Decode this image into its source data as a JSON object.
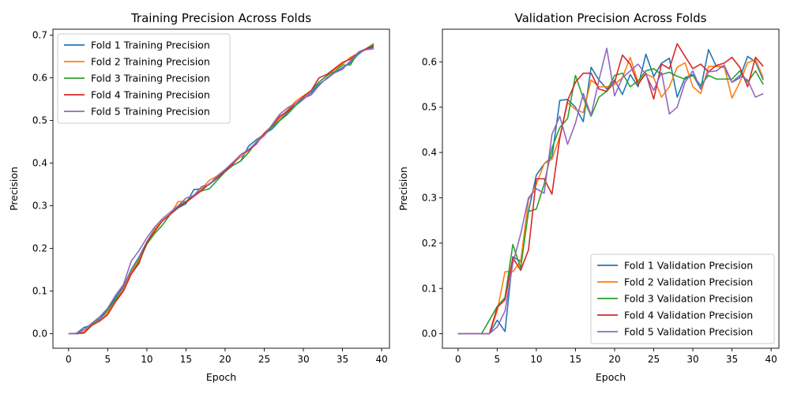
{
  "colors": {
    "series": [
      "#1f77b4",
      "#ff7f0e",
      "#2ca02c",
      "#d62728",
      "#9467bd"
    ],
    "axis": "#000000",
    "legend_border": "#cccccc"
  },
  "chart_data": [
    {
      "type": "line",
      "title": "Training Precision Across Folds",
      "xlabel": "Epoch",
      "ylabel": "Precision",
      "xlim": [
        -2,
        41
      ],
      "ylim": [
        -0.034,
        0.714
      ],
      "xticks": [
        0,
        5,
        10,
        15,
        20,
        25,
        30,
        35,
        40
      ],
      "yticks": [
        0.0,
        0.1,
        0.2,
        0.3,
        0.4,
        0.5,
        0.6,
        0.7
      ],
      "ytick_labels": [
        "0.0",
        "0.1",
        "0.2",
        "0.3",
        "0.4",
        "0.5",
        "0.6",
        "0.7"
      ],
      "grid": false,
      "legend": "upper left",
      "x": [
        0,
        1,
        2,
        3,
        4,
        5,
        6,
        7,
        8,
        9,
        10,
        11,
        12,
        13,
        14,
        15,
        16,
        17,
        18,
        19,
        20,
        21,
        22,
        23,
        24,
        25,
        26,
        27,
        28,
        29,
        30,
        31,
        32,
        33,
        34,
        35,
        36,
        37,
        38,
        39
      ],
      "series": [
        {
          "name": "Fold 1 Training Precision",
          "values": [
            0.0,
            0.001,
            0.015,
            0.02,
            0.035,
            0.055,
            0.085,
            0.11,
            0.15,
            0.18,
            0.215,
            0.245,
            0.265,
            0.28,
            0.295,
            0.305,
            0.338,
            0.34,
            0.35,
            0.365,
            0.38,
            0.395,
            0.405,
            0.44,
            0.455,
            0.468,
            0.48,
            0.5,
            0.52,
            0.535,
            0.55,
            0.565,
            0.585,
            0.598,
            0.612,
            0.624,
            0.635,
            0.655,
            0.668,
            0.672
          ]
        },
        {
          "name": "Fold 2 Training Precision",
          "values": [
            0.0,
            0.0,
            0.005,
            0.025,
            0.03,
            0.05,
            0.08,
            0.105,
            0.145,
            0.175,
            0.21,
            0.245,
            0.265,
            0.28,
            0.31,
            0.31,
            0.325,
            0.34,
            0.36,
            0.37,
            0.385,
            0.4,
            0.415,
            0.43,
            0.45,
            0.47,
            0.485,
            0.505,
            0.525,
            0.545,
            0.558,
            0.57,
            0.59,
            0.605,
            0.62,
            0.632,
            0.648,
            0.658,
            0.668,
            0.678
          ]
        },
        {
          "name": "Fold 3 Training Precision",
          "values": [
            0.0,
            0.0,
            0.002,
            0.022,
            0.04,
            0.055,
            0.08,
            0.1,
            0.14,
            0.17,
            0.21,
            0.235,
            0.255,
            0.28,
            0.3,
            0.31,
            0.325,
            0.335,
            0.34,
            0.36,
            0.38,
            0.395,
            0.405,
            0.425,
            0.45,
            0.465,
            0.485,
            0.5,
            0.515,
            0.535,
            0.555,
            0.57,
            0.59,
            0.605,
            0.615,
            0.63,
            0.63,
            0.66,
            0.668,
            0.68
          ]
        },
        {
          "name": "Fold 4 Training Precision",
          "values": [
            0.0,
            0.0,
            0.002,
            0.02,
            0.03,
            0.045,
            0.075,
            0.1,
            0.14,
            0.165,
            0.215,
            0.24,
            0.265,
            0.28,
            0.298,
            0.308,
            0.322,
            0.336,
            0.352,
            0.366,
            0.382,
            0.398,
            0.42,
            0.43,
            0.445,
            0.47,
            0.488,
            0.51,
            0.522,
            0.54,
            0.555,
            0.57,
            0.6,
            0.608,
            0.622,
            0.636,
            0.644,
            0.658,
            0.668,
            0.675
          ]
        },
        {
          "name": "Fold 5 Training Precision",
          "values": [
            0.0,
            0.0,
            0.01,
            0.025,
            0.04,
            0.06,
            0.09,
            0.115,
            0.17,
            0.195,
            0.225,
            0.25,
            0.27,
            0.285,
            0.3,
            0.318,
            0.324,
            0.345,
            0.35,
            0.37,
            0.385,
            0.402,
            0.42,
            0.432,
            0.448,
            0.465,
            0.49,
            0.515,
            0.53,
            0.54,
            0.552,
            0.56,
            0.582,
            0.6,
            0.612,
            0.62,
            0.64,
            0.658,
            0.666,
            0.668
          ]
        }
      ]
    },
    {
      "type": "line",
      "title": "Validation Precision Across Folds",
      "xlabel": "Epoch",
      "ylabel": "Precision",
      "xlim": [
        -2,
        41
      ],
      "ylim": [
        -0.032,
        0.672
      ],
      "xticks": [
        0,
        5,
        10,
        15,
        20,
        25,
        30,
        35,
        40
      ],
      "yticks": [
        0.0,
        0.1,
        0.2,
        0.3,
        0.4,
        0.5,
        0.6
      ],
      "ytick_labels": [
        "0.0",
        "0.1",
        "0.2",
        "0.3",
        "0.4",
        "0.5",
        "0.6"
      ],
      "grid": false,
      "legend": "lower right",
      "x": [
        0,
        1,
        2,
        3,
        4,
        5,
        6,
        7,
        8,
        9,
        10,
        11,
        12,
        13,
        14,
        15,
        16,
        17,
        18,
        19,
        20,
        21,
        22,
        23,
        24,
        25,
        26,
        27,
        28,
        29,
        30,
        31,
        32,
        33,
        34,
        35,
        36,
        37,
        38,
        39
      ],
      "series": [
        {
          "name": "Fold 1 Validation Precision",
          "values": [
            0.0,
            0.0,
            0.0,
            0.0,
            0.0,
            0.03,
            0.005,
            0.17,
            0.16,
            0.27,
            0.35,
            0.375,
            0.39,
            0.515,
            0.517,
            0.5,
            0.468,
            0.588,
            0.56,
            0.54,
            0.56,
            0.528,
            0.572,
            0.545,
            0.617,
            0.568,
            0.597,
            0.608,
            0.522,
            0.565,
            0.572,
            0.54,
            0.627,
            0.59,
            0.588,
            0.555,
            0.565,
            0.612,
            0.6,
            0.56
          ]
        },
        {
          "name": "Fold 2 Validation Precision",
          "values": [
            0.0,
            0.0,
            0.0,
            0.0,
            0.0,
            0.05,
            0.137,
            0.137,
            0.16,
            0.295,
            0.33,
            0.375,
            0.385,
            0.435,
            0.51,
            0.495,
            0.488,
            0.56,
            0.545,
            0.545,
            0.55,
            0.565,
            0.61,
            0.555,
            0.573,
            0.565,
            0.522,
            0.545,
            0.588,
            0.598,
            0.545,
            0.53,
            0.59,
            0.59,
            0.59,
            0.52,
            0.555,
            0.598,
            0.605,
            0.565
          ]
        },
        {
          "name": "Fold 3 Validation Precision",
          "values": [
            0.0,
            0.0,
            0.0,
            0.0,
            0.03,
            0.06,
            0.08,
            0.197,
            0.145,
            0.27,
            0.275,
            0.33,
            0.41,
            0.455,
            0.475,
            0.57,
            0.52,
            0.48,
            0.522,
            0.535,
            0.57,
            0.575,
            0.545,
            0.558,
            0.58,
            0.585,
            0.572,
            0.577,
            0.568,
            0.562,
            0.57,
            0.548,
            0.57,
            0.562,
            0.562,
            0.562,
            0.58,
            0.555,
            0.58,
            0.55
          ]
        },
        {
          "name": "Fold 4 Validation Precision",
          "values": [
            0.0,
            0.0,
            0.0,
            0.0,
            0.0,
            0.058,
            0.075,
            0.168,
            0.14,
            0.185,
            0.342,
            0.342,
            0.308,
            0.432,
            0.515,
            0.555,
            0.575,
            0.575,
            0.54,
            0.535,
            0.555,
            0.615,
            0.595,
            0.55,
            0.575,
            0.518,
            0.595,
            0.585,
            0.64,
            0.612,
            0.585,
            0.595,
            0.578,
            0.592,
            0.597,
            0.61,
            0.588,
            0.545,
            0.61,
            0.59
          ]
        },
        {
          "name": "Fold 5 Validation Precision",
          "values": [
            0.0,
            0.0,
            0.0,
            0.0,
            0.0,
            0.015,
            0.05,
            0.155,
            0.22,
            0.3,
            0.32,
            0.31,
            0.44,
            0.48,
            0.418,
            0.465,
            0.53,
            0.482,
            0.56,
            0.63,
            0.525,
            0.565,
            0.58,
            0.595,
            0.572,
            0.537,
            0.577,
            0.485,
            0.5,
            0.555,
            0.58,
            0.54,
            0.578,
            0.58,
            0.593,
            0.555,
            0.57,
            0.56,
            0.522,
            0.53
          ]
        }
      ]
    }
  ]
}
